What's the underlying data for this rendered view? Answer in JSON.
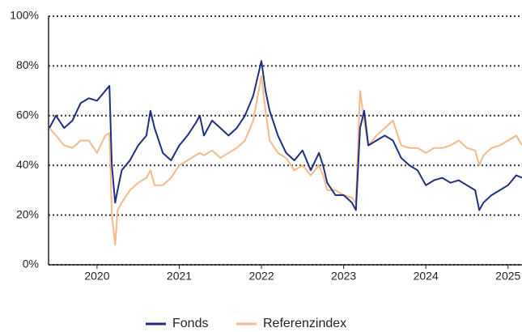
{
  "chart_data": {
    "type": "line",
    "x": [
      2019.42,
      2019.5,
      2019.6,
      2019.7,
      2019.8,
      2019.9,
      2020.0,
      2020.1,
      2020.15,
      2020.18,
      2020.22,
      2020.25,
      2020.3,
      2020.4,
      2020.5,
      2020.6,
      2020.65,
      2020.7,
      2020.8,
      2020.9,
      2021.0,
      2021.1,
      2021.2,
      2021.25,
      2021.3,
      2021.4,
      2021.5,
      2021.6,
      2021.7,
      2021.8,
      2021.9,
      2022.0,
      2022.05,
      2022.1,
      2022.2,
      2022.3,
      2022.4,
      2022.5,
      2022.6,
      2022.7,
      2022.75,
      2022.8,
      2022.9,
      2023.0,
      2023.1,
      2023.15,
      2023.2,
      2023.25,
      2023.3,
      2023.4,
      2023.5,
      2023.6,
      2023.7,
      2023.8,
      2023.9,
      2024.0,
      2024.1,
      2024.2,
      2024.3,
      2024.4,
      2024.5,
      2024.6,
      2024.65,
      2024.7,
      2024.8,
      2024.9,
      2025.0,
      2025.1,
      2025.17
    ],
    "series": [
      {
        "name": "Fonds",
        "color": "#1f2f7f",
        "values": [
          55,
          60,
          55,
          58,
          65,
          67,
          66,
          70,
          72,
          40,
          25,
          30,
          38,
          42,
          48,
          52,
          62,
          55,
          45,
          42,
          48,
          52,
          57,
          60,
          52,
          58,
          55,
          52,
          55,
          60,
          68,
          82,
          70,
          62,
          52,
          45,
          42,
          46,
          38,
          45,
          40,
          33,
          28,
          28,
          25,
          22,
          55,
          62,
          48,
          50,
          52,
          50,
          43,
          40,
          38,
          32,
          34,
          35,
          33,
          34,
          32,
          30,
          22,
          25,
          28,
          30,
          32,
          36,
          35
        ]
      },
      {
        "name": "Referenzindex",
        "color": "#f4b98b",
        "values": [
          55,
          52,
          48,
          47,
          50,
          50,
          45,
          52,
          53,
          20,
          8,
          22,
          25,
          30,
          33,
          35,
          38,
          32,
          32,
          35,
          40,
          42,
          44,
          45,
          44,
          46,
          43,
          45,
          47,
          50,
          58,
          76,
          62,
          50,
          45,
          43,
          38,
          40,
          36,
          40,
          36,
          30,
          30,
          28,
          27,
          25,
          70,
          58,
          48,
          52,
          55,
          58,
          48,
          47,
          47,
          45,
          47,
          47,
          48,
          50,
          47,
          46,
          40,
          44,
          47,
          48,
          50,
          52,
          48
        ]
      }
    ],
    "xlim": [
      2019.41,
      2025.17
    ],
    "xticks": [
      2020,
      2021,
      2022,
      2023,
      2024,
      2025
    ],
    "ylim": [
      0,
      100
    ],
    "yticks": [
      {
        "value": 0,
        "label": "0%"
      },
      {
        "value": 20,
        "label": "20%"
      },
      {
        "value": 40,
        "label": "40%"
      },
      {
        "value": 60,
        "label": "60%"
      },
      {
        "value": 80,
        "label": "80%"
      },
      {
        "value": 100,
        "label": "100%"
      }
    ],
    "grid": true,
    "legend": "bottom"
  }
}
